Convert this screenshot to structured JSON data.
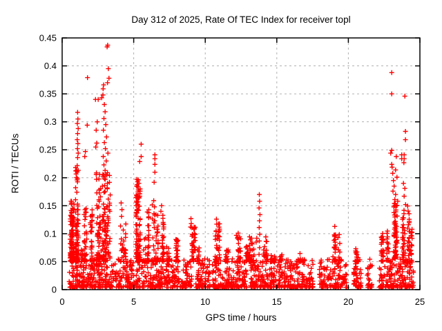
{
  "chart": {
    "title": "Day 312 of 2025, Rate Of TEC Index for receiver topl",
    "xlabel": "GPS time / hours",
    "ylabel": "ROTI / TECUs"
  },
  "colors": {
    "marker": "#ff0000",
    "grid": "#b0b0b0",
    "axis": "#000000",
    "background": "#ffffff",
    "text": "#000000"
  },
  "chart_data": {
    "type": "scatter",
    "title": "Day 312 of 2025, Rate Of TEC Index for receiver topl",
    "xlabel": "GPS time / hours",
    "ylabel": "ROTI / TECUs",
    "xlim": [
      0,
      25
    ],
    "ylim": [
      0,
      0.45
    ],
    "xticks": [
      0,
      5,
      10,
      15,
      20,
      25
    ],
    "xtick_labels": [
      "0",
      "5",
      "10",
      "15",
      "20",
      "25"
    ],
    "yticks": [
      0,
      0.05,
      0.1,
      0.15,
      0.2,
      0.25,
      0.3,
      0.35,
      0.4,
      0.45
    ],
    "ytick_labels": [
      "0",
      "0.05",
      "0.1",
      "0.15",
      "0.2",
      "0.25",
      "0.3",
      "0.35",
      "0.4",
      "0.45"
    ],
    "grid": true,
    "grid_style": "dashed",
    "legend": "none",
    "series_name": "ROTI",
    "marker": "plus",
    "marker_size_px": 7,
    "marker_color": "#ff0000",
    "outlier_points": [
      [
        1.08,
        0.317
      ],
      [
        1.1,
        0.305
      ],
      [
        1.06,
        0.297
      ],
      [
        1.12,
        0.288
      ],
      [
        1.08,
        0.279
      ],
      [
        1.05,
        0.268
      ],
      [
        1.1,
        0.261
      ],
      [
        1.07,
        0.252
      ],
      [
        1.12,
        0.244
      ],
      [
        1.08,
        0.236
      ],
      [
        1.77,
        0.379
      ],
      [
        1.75,
        0.294
      ],
      [
        1.62,
        0.247
      ],
      [
        1.58,
        0.238
      ],
      [
        2.33,
        0.34
      ],
      [
        2.52,
        0.34
      ],
      [
        2.45,
        0.3
      ],
      [
        2.38,
        0.285
      ],
      [
        2.42,
        0.262
      ],
      [
        2.35,
        0.255
      ],
      [
        3.18,
        0.437
      ],
      [
        3.14,
        0.434
      ],
      [
        3.23,
        0.395
      ],
      [
        3.27,
        0.378
      ],
      [
        3.17,
        0.37
      ],
      [
        2.9,
        0.366
      ],
      [
        2.86,
        0.359
      ],
      [
        2.85,
        0.348
      ],
      [
        2.76,
        0.343
      ],
      [
        2.95,
        0.331
      ],
      [
        3.0,
        0.318
      ],
      [
        2.92,
        0.306
      ],
      [
        3.05,
        0.295
      ],
      [
        2.88,
        0.285
      ],
      [
        3.1,
        0.273
      ],
      [
        2.95,
        0.263
      ],
      [
        3.02,
        0.252
      ],
      [
        3.2,
        0.244
      ],
      [
        2.87,
        0.238
      ],
      [
        3.08,
        0.23
      ],
      [
        2.92,
        0.223
      ],
      [
        3.0,
        0.213
      ],
      [
        3.12,
        0.205
      ],
      [
        2.96,
        0.198
      ],
      [
        4.12,
        0.155
      ],
      [
        4.18,
        0.143
      ],
      [
        4.15,
        0.131
      ],
      [
        5.52,
        0.26
      ],
      [
        5.52,
        0.238
      ],
      [
        5.42,
        0.229
      ],
      [
        5.32,
        0.196
      ],
      [
        5.36,
        0.19
      ],
      [
        5.28,
        0.184
      ],
      [
        5.33,
        0.178
      ],
      [
        5.3,
        0.171
      ],
      [
        5.38,
        0.164
      ],
      [
        5.31,
        0.157
      ],
      [
        5.35,
        0.149
      ],
      [
        5.29,
        0.143
      ],
      [
        6.48,
        0.241
      ],
      [
        6.48,
        0.234
      ],
      [
        6.48,
        0.224
      ],
      [
        6.48,
        0.21
      ],
      [
        6.43,
        0.192
      ],
      [
        6.4,
        0.159
      ],
      [
        6.45,
        0.148
      ],
      [
        6.42,
        0.136
      ],
      [
        6.47,
        0.123
      ],
      [
        6.44,
        0.111
      ],
      [
        6.95,
        0.15
      ],
      [
        6.9,
        0.14
      ],
      [
        9.0,
        0.127
      ],
      [
        9.02,
        0.118
      ],
      [
        8.97,
        0.112
      ],
      [
        10.78,
        0.126
      ],
      [
        10.8,
        0.117
      ],
      [
        10.76,
        0.105
      ],
      [
        10.82,
        0.091
      ],
      [
        10.79,
        0.079
      ],
      [
        12.3,
        0.101
      ],
      [
        12.25,
        0.092
      ],
      [
        13.78,
        0.17
      ],
      [
        13.8,
        0.158
      ],
      [
        13.76,
        0.146
      ],
      [
        13.82,
        0.134
      ],
      [
        13.79,
        0.123
      ],
      [
        13.77,
        0.111
      ],
      [
        13.81,
        0.099
      ],
      [
        13.78,
        0.087
      ],
      [
        13.8,
        0.075
      ],
      [
        13.76,
        0.063
      ],
      [
        13.6,
        0.092
      ],
      [
        13.55,
        0.085
      ],
      [
        19.05,
        0.113
      ],
      [
        19.1,
        0.098
      ],
      [
        19.0,
        0.088
      ],
      [
        19.15,
        0.076
      ],
      [
        19.08,
        0.067
      ],
      [
        23.03,
        0.388
      ],
      [
        23.03,
        0.35
      ],
      [
        23.95,
        0.346
      ],
      [
        23.99,
        0.283
      ],
      [
        23.99,
        0.268
      ],
      [
        23.03,
        0.249
      ],
      [
        22.96,
        0.244
      ],
      [
        23.35,
        0.238
      ],
      [
        23.73,
        0.241
      ],
      [
        23.9,
        0.241
      ],
      [
        23.73,
        0.234
      ],
      [
        23.9,
        0.234
      ],
      [
        23.88,
        0.227
      ],
      [
        23.03,
        0.224
      ],
      [
        23.06,
        0.219
      ],
      [
        23.3,
        0.214
      ],
      [
        23.1,
        0.208
      ],
      [
        23.4,
        0.201
      ],
      [
        23.15,
        0.195
      ],
      [
        23.85,
        0.19
      ],
      [
        23.2,
        0.185
      ],
      [
        23.95,
        0.181
      ],
      [
        23.12,
        0.176
      ],
      [
        23.3,
        0.17
      ],
      [
        23.9,
        0.167
      ],
      [
        23.25,
        0.161
      ],
      [
        23.45,
        0.158
      ],
      [
        24.0,
        0.152
      ],
      [
        23.18,
        0.148
      ],
      [
        24.45,
        0.108
      ],
      [
        24.42,
        0.096
      ]
    ],
    "baseline": {
      "band": {
        "y0": 0.004,
        "y1": 0.055,
        "p": 2.1,
        "s": 0
      },
      "segments": [
        {
          "x0": 0.48,
          "x1": 3.6,
          "n": 200
        },
        {
          "x0": 3.68,
          "x1": 5.45,
          "n": 115
        },
        {
          "x0": 5.55,
          "x1": 9.08,
          "n": 215
        },
        {
          "x0": 9.3,
          "x1": 10.35,
          "n": 70
        },
        {
          "x0": 10.5,
          "x1": 12.9,
          "n": 150
        },
        {
          "x0": 13.1,
          "x1": 15.4,
          "n": 145
        },
        {
          "x0": 15.5,
          "x1": 17.55,
          "n": 130
        },
        {
          "x0": 17.95,
          "x1": 19.9,
          "n": 115
        },
        {
          "x0": 20.35,
          "x1": 20.95,
          "n": 40
        },
        {
          "x0": 21.3,
          "x1": 21.65,
          "n": 24
        },
        {
          "x0": 22.15,
          "x1": 24.55,
          "n": 155
        }
      ]
    },
    "clusters": {
      "band": {
        "p": 1.8,
        "s": 4
      },
      "items": [
        {
          "x0": 0.48,
          "x1": 0.66,
          "y0": 0.05,
          "y1": 0.17,
          "n": 65,
          "p": 1.7
        },
        {
          "x0": 0.67,
          "x1": 0.85,
          "y0": 0.05,
          "y1": 0.155,
          "n": 45
        },
        {
          "x0": 0.9,
          "x1": 1.2,
          "y0": 0.05,
          "y1": 0.23,
          "n": 75,
          "p": 1.9
        },
        {
          "x0": 1.3,
          "x1": 1.45,
          "y0": 0.05,
          "y1": 0.09,
          "n": 12
        },
        {
          "x0": 1.5,
          "x1": 2.1,
          "y0": 0.05,
          "y1": 0.155,
          "n": 65,
          "p": 1.9
        },
        {
          "x0": 2.3,
          "x1": 3.5,
          "y0": 0.05,
          "y1": 0.21,
          "n": 150,
          "p": 1.7
        },
        {
          "x0": 3.9,
          "x1": 4.45,
          "y0": 0.05,
          "y1": 0.12,
          "n": 30
        },
        {
          "x0": 4.6,
          "x1": 5.45,
          "y0": 0.05,
          "y1": 0.2,
          "n": 95,
          "p": 1.7
        },
        {
          "x0": 5.6,
          "x1": 6.05,
          "y0": 0.05,
          "y1": 0.15,
          "n": 35
        },
        {
          "x0": 6.2,
          "x1": 6.7,
          "y0": 0.05,
          "y1": 0.155,
          "n": 38
        },
        {
          "x0": 6.75,
          "x1": 7.1,
          "y0": 0.05,
          "y1": 0.135,
          "n": 26
        },
        {
          "x0": 7.3,
          "x1": 7.6,
          "y0": 0.05,
          "y1": 0.08,
          "n": 14
        },
        {
          "x0": 7.9,
          "x1": 8.5,
          "y0": 0.05,
          "y1": 0.09,
          "n": 26
        },
        {
          "x0": 8.75,
          "x1": 9.3,
          "y0": 0.05,
          "y1": 0.112,
          "n": 34
        },
        {
          "x0": 9.35,
          "x1": 9.6,
          "y0": 0.05,
          "y1": 0.075,
          "n": 12
        },
        {
          "x0": 10.55,
          "x1": 11.0,
          "y0": 0.05,
          "y1": 0.12,
          "n": 30
        },
        {
          "x0": 11.4,
          "x1": 11.78,
          "y0": 0.05,
          "y1": 0.075,
          "n": 16
        },
        {
          "x0": 12.05,
          "x1": 12.5,
          "y0": 0.05,
          "y1": 0.1,
          "n": 22
        },
        {
          "x0": 12.8,
          "x1": 14.3,
          "y0": 0.05,
          "y1": 0.095,
          "n": 62,
          "p": 1.9
        },
        {
          "x0": 14.5,
          "x1": 17.5,
          "y0": 0.05,
          "y1": 0.066,
          "n": 32,
          "p": 2.3
        },
        {
          "x0": 18.85,
          "x1": 19.4,
          "y0": 0.05,
          "y1": 0.1,
          "n": 26
        },
        {
          "x0": 20.4,
          "x1": 20.9,
          "y0": 0.05,
          "y1": 0.074,
          "n": 14,
          "p": 2.0
        },
        {
          "x0": 22.3,
          "x1": 23.0,
          "y0": 0.05,
          "y1": 0.105,
          "n": 45,
          "p": 1.6
        },
        {
          "x0": 22.85,
          "x1": 23.55,
          "y0": 0.055,
          "y1": 0.155,
          "n": 60,
          "p": 1.5
        },
        {
          "x0": 23.6,
          "x1": 24.25,
          "y0": 0.05,
          "y1": 0.15,
          "n": 55,
          "p": 1.5
        },
        {
          "x0": 24.3,
          "x1": 24.55,
          "y0": 0.04,
          "y1": 0.105,
          "n": 18,
          "p": 1.6
        }
      ]
    }
  }
}
